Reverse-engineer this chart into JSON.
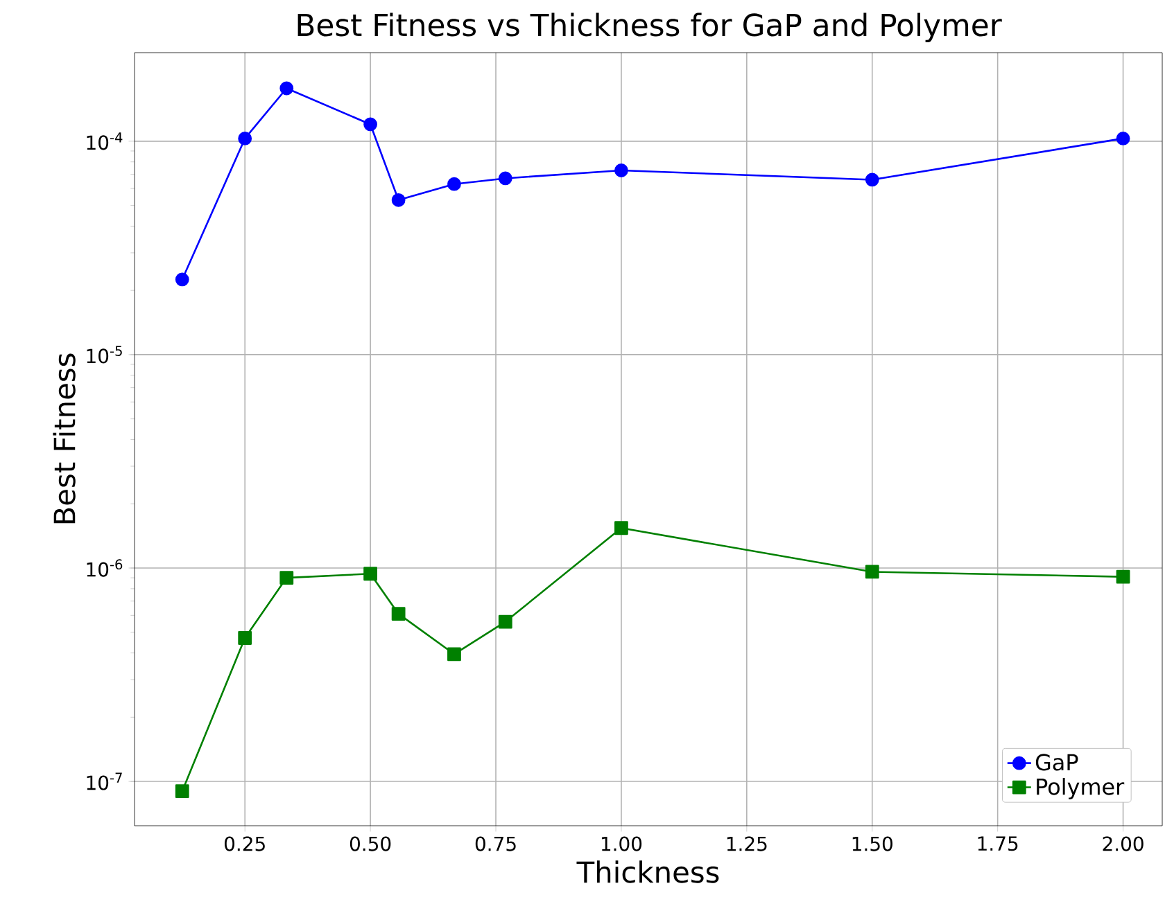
{
  "chart_data": {
    "type": "line",
    "title": "Best Fitness vs Thickness for GaP and Polymer",
    "xlabel": "Thickness",
    "ylabel": "Best Fitness",
    "log": "y",
    "grid": true,
    "legend": "bottom right",
    "line_style": "solid",
    "x": [
      0.125,
      0.25,
      0.333,
      0.5,
      0.556,
      0.667,
      0.769,
      1.0,
      1.5,
      2.0
    ],
    "xlim": [
      0.03,
      2.078
    ],
    "xticks": [
      {
        "value": 0.25,
        "label": "0.25"
      },
      {
        "value": 0.5,
        "label": "0.50"
      },
      {
        "value": 0.75,
        "label": "0.75"
      },
      {
        "value": 1.0,
        "label": "1.00"
      },
      {
        "value": 1.25,
        "label": "1.25"
      },
      {
        "value": 1.5,
        "label": "1.50"
      },
      {
        "value": 1.75,
        "label": "1.75"
      },
      {
        "value": 2.0,
        "label": "2.00"
      }
    ],
    "ylim": [
      6.2e-08,
      0.00026
    ],
    "yticks": [
      {
        "value": 1e-07,
        "label": "10$^{-7}$"
      },
      {
        "value": 1e-06,
        "label": "10$^{-6}$"
      },
      {
        "value": 1e-05,
        "label": "10$^{-5}$"
      },
      {
        "value": 0.0001,
        "label": "10$^{-4}$"
      }
    ],
    "series": [
      {
        "name": "GaP",
        "color": "#0000ff",
        "marker": "circle",
        "values": [
          2.25e-05,
          0.000103,
          0.000177,
          0.00012,
          5.3e-05,
          6.3e-05,
          6.7e-05,
          7.3e-05,
          6.6e-05,
          0.000103
        ]
      },
      {
        "name": "Polymer",
        "color": "#008000",
        "marker": "square",
        "values": [
          9e-08,
          4.7e-07,
          9e-07,
          9.4e-07,
          6.1e-07,
          3.95e-07,
          5.6e-07,
          1.54e-06,
          9.6e-07,
          9.1e-07
        ]
      }
    ]
  }
}
